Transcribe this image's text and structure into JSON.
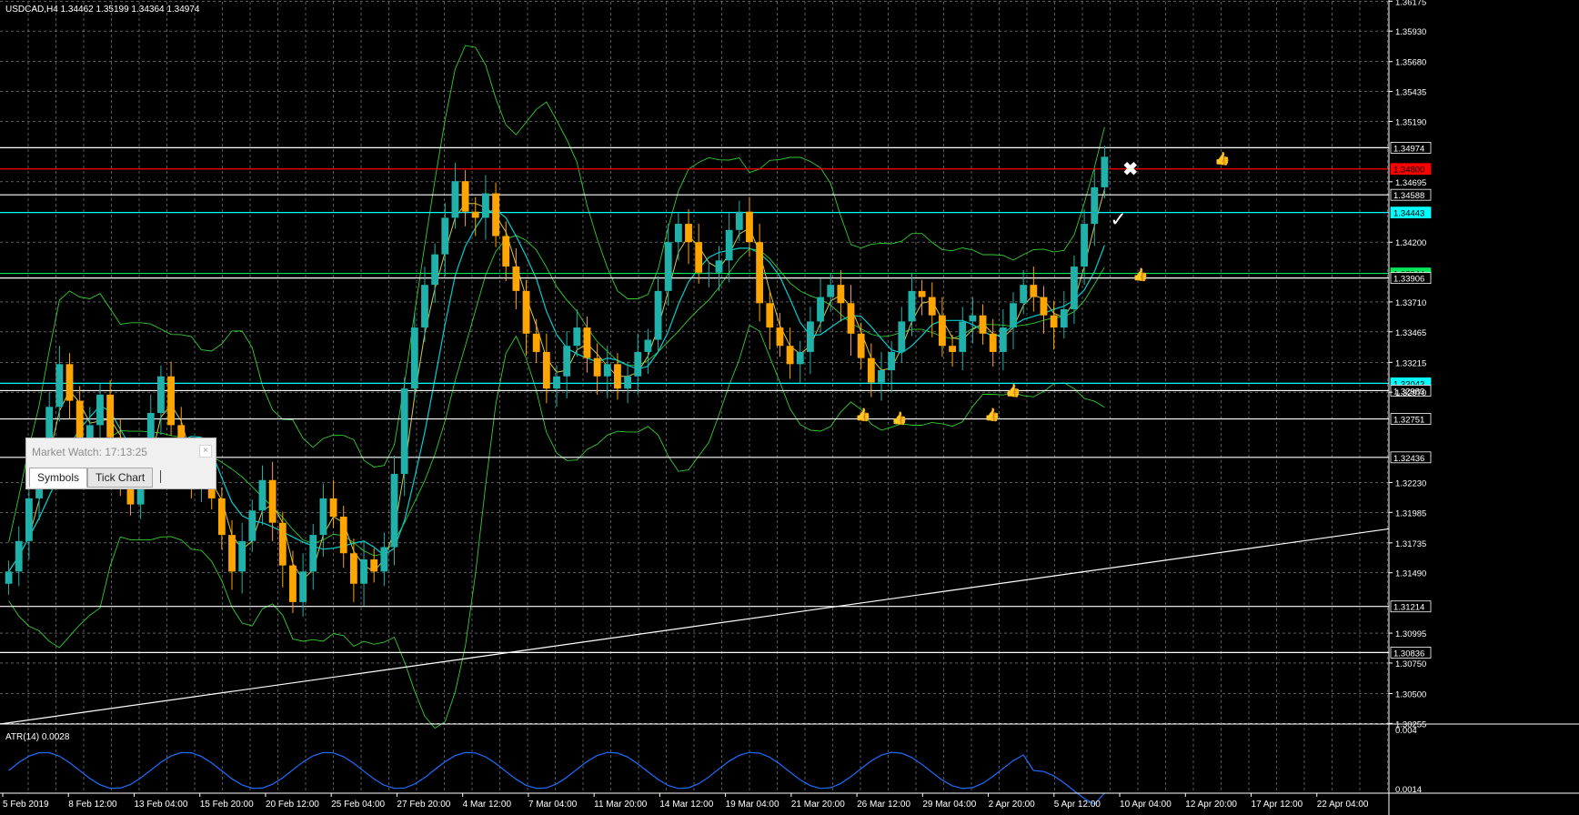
{
  "chart_header": "USDCAD,H4  1.34462 1.35199 1.34364 1.34974",
  "indicator_header": "ATR(14) 0.0028",
  "market_watch": {
    "title": "Market Watch: 17:13:25",
    "close_glyph": "×",
    "tabs": [
      "Symbols",
      "Tick Chart"
    ],
    "active_tab": "Symbols"
  },
  "colors": {
    "background": "#000000",
    "grid": "#c8c8c8",
    "bull": "#20b2aa",
    "bear": "#ffa500",
    "resistance_line": "#ff0000",
    "level_cyan": "#00ffff",
    "level_green": "#00e85c",
    "level_white": "#ffffff",
    "bands": "#32cd32",
    "ma_cyan": "#00ced1",
    "ma_yellow": "#d4c94a",
    "atr": "#1e6fff"
  },
  "chart_data": {
    "type": "candlestick",
    "symbol": "USDCAD",
    "timeframe": "H4",
    "ylim": [
      1.3025,
      1.3617
    ],
    "price_ticks": [
      "1.36175",
      "1.35930",
      "1.35680",
      "1.35435",
      "1.35190",
      "1.34695",
      "1.34200",
      "1.33710",
      "1.33465",
      "1.33215",
      "1.32970",
      "1.32230",
      "1.31985",
      "1.31735",
      "1.31490",
      "1.30995",
      "1.30750",
      "1.30500",
      "1.30255"
    ],
    "date_ticks": [
      "5 Feb 2019",
      "8 Feb 12:00",
      "13 Feb 04:00",
      "15 Feb 20:00",
      "20 Feb 12:00",
      "25 Feb 04:00",
      "27 Feb 20:00",
      "4 Mar 12:00",
      "7 Mar 04:00",
      "11 Mar 20:00",
      "14 Mar 12:00",
      "19 Mar 04:00",
      "21 Mar 20:00",
      "26 Mar 12:00",
      "29 Mar 04:00",
      "2 Apr 20:00",
      "5 Apr 12:00",
      "10 Apr 04:00",
      "12 Apr 20:00",
      "17 Apr 12:00",
      "22 Apr 04:00"
    ],
    "horizontal_levels": [
      {
        "label": "1.34974",
        "price": 1.34974,
        "color": "white",
        "style": "current"
      },
      {
        "label": "1.34800",
        "price": 1.348,
        "color": "red"
      },
      {
        "label": "1.34588",
        "price": 1.34588,
        "color": "white"
      },
      {
        "label": "1.34443",
        "price": 1.34443,
        "color": "cyan"
      },
      {
        "label": "1.33944",
        "price": 1.33944,
        "color": "green"
      },
      {
        "label": "1.33906",
        "price": 1.33906,
        "color": "white"
      },
      {
        "label": "1.33043",
        "price": 1.33043,
        "color": "cyan"
      },
      {
        "label": "1.32983",
        "price": 1.32983,
        "color": "white"
      },
      {
        "label": "1.32751",
        "price": 1.32751,
        "color": "white"
      },
      {
        "label": "1.32436",
        "price": 1.32436,
        "color": "white"
      },
      {
        "label": "1.31214",
        "price": 1.31214,
        "color": "white"
      },
      {
        "label": "1.30836",
        "price": 1.30836,
        "color": "white"
      }
    ],
    "trendline": {
      "from_price": 1.3025,
      "to_price": 1.3185
    },
    "series_close": [
      1.315,
      1.3175,
      1.321,
      1.324,
      1.3285,
      1.332,
      1.329,
      1.3255,
      1.327,
      1.3295,
      1.326,
      1.323,
      1.3205,
      1.324,
      1.328,
      1.331,
      1.327,
      1.324,
      1.3225,
      1.3235,
      1.321,
      1.318,
      1.315,
      1.3175,
      1.32,
      1.3225,
      1.319,
      1.3155,
      1.3125,
      1.315,
      1.318,
      1.321,
      1.3195,
      1.3165,
      1.314,
      1.316,
      1.315,
      1.317,
      1.323,
      1.33,
      1.335,
      1.3385,
      1.341,
      1.344,
      1.347,
      1.3445,
      1.344,
      1.346,
      1.3425,
      1.34,
      1.338,
      1.3345,
      1.333,
      1.33,
      1.331,
      1.3335,
      1.335,
      1.3325,
      1.331,
      1.332,
      1.33,
      1.331,
      1.333,
      1.334,
      1.338,
      1.342,
      1.3435,
      1.342,
      1.3395,
      1.3395,
      1.3405,
      1.343,
      1.3445,
      1.342,
      1.337,
      1.335,
      1.3335,
      1.332,
      1.333,
      1.3355,
      1.3375,
      1.3385,
      1.337,
      1.3345,
      1.3325,
      1.3305,
      1.3315,
      1.333,
      1.3355,
      1.338,
      1.3375,
      1.336,
      1.3335,
      1.333,
      1.3355,
      1.336,
      1.3345,
      1.333,
      1.335,
      1.337,
      1.3385,
      1.3375,
      1.336,
      1.335,
      1.3365,
      1.34,
      1.3435,
      1.3465,
      1.349
    ],
    "atr_ylim": [
      0.0012,
      0.004
    ],
    "atr_ticks": [
      "0.004",
      "0.0014"
    ],
    "atr_last": 0.0028
  }
}
